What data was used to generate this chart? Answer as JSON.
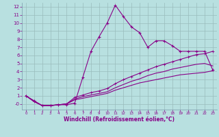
{
  "xlabel": "Windchill (Refroidissement éolien,°C)",
  "bg_color": "#b8e0e0",
  "grid_color": "#99bbbb",
  "line_color": "#880088",
  "xlim": [
    -0.5,
    23.5
  ],
  "ylim": [
    -0.7,
    12.5
  ],
  "xticks": [
    0,
    1,
    2,
    3,
    4,
    5,
    6,
    7,
    8,
    9,
    10,
    11,
    12,
    13,
    14,
    15,
    16,
    17,
    18,
    19,
    20,
    21,
    22,
    23
  ],
  "yticks": [
    0,
    1,
    2,
    3,
    4,
    5,
    6,
    7,
    8,
    9,
    10,
    11,
    12
  ],
  "series1_x": [
    0,
    1,
    2,
    3,
    4,
    5,
    6,
    7,
    8,
    9,
    10,
    11,
    12,
    13,
    14,
    15,
    16,
    17,
    18,
    19,
    20,
    21,
    22,
    23
  ],
  "series1_y": [
    1.0,
    0.4,
    -0.2,
    -0.2,
    -0.1,
    -0.1,
    0.1,
    3.3,
    6.5,
    8.3,
    10.0,
    12.2,
    10.8,
    9.5,
    8.8,
    7.0,
    7.8,
    7.8,
    7.2,
    6.5,
    6.5,
    6.5,
    6.5,
    4.2
  ],
  "series2_x": [
    0,
    1,
    2,
    3,
    4,
    5,
    6,
    7,
    8,
    9,
    10,
    11,
    12,
    13,
    14,
    15,
    16,
    17,
    18,
    19,
    20,
    21,
    22,
    23
  ],
  "series2_y": [
    1.0,
    0.3,
    -0.2,
    -0.2,
    -0.1,
    0.0,
    0.8,
    1.1,
    1.4,
    1.6,
    1.9,
    2.5,
    3.0,
    3.4,
    3.8,
    4.2,
    4.6,
    4.9,
    5.2,
    5.5,
    5.8,
    6.1,
    6.2,
    6.5
  ],
  "series3_x": [
    0,
    1,
    2,
    3,
    4,
    5,
    6,
    7,
    8,
    9,
    10,
    11,
    12,
    13,
    14,
    15,
    16,
    17,
    18,
    19,
    20,
    21,
    22,
    23
  ],
  "series3_y": [
    1.0,
    0.3,
    -0.2,
    -0.2,
    -0.1,
    0.0,
    0.6,
    0.9,
    1.1,
    1.3,
    1.5,
    2.0,
    2.4,
    2.8,
    3.1,
    3.5,
    3.8,
    4.0,
    4.3,
    4.5,
    4.7,
    4.9,
    5.0,
    4.7
  ],
  "series4_x": [
    0,
    1,
    2,
    3,
    4,
    5,
    6,
    7,
    8,
    9,
    10,
    11,
    12,
    13,
    14,
    15,
    16,
    17,
    18,
    19,
    20,
    21,
    22,
    23
  ],
  "series4_y": [
    1.0,
    0.3,
    -0.2,
    -0.2,
    -0.1,
    0.0,
    0.5,
    0.7,
    0.9,
    1.1,
    1.3,
    1.7,
    2.0,
    2.3,
    2.6,
    2.8,
    3.0,
    3.2,
    3.4,
    3.6,
    3.7,
    3.8,
    3.9,
    4.1
  ]
}
